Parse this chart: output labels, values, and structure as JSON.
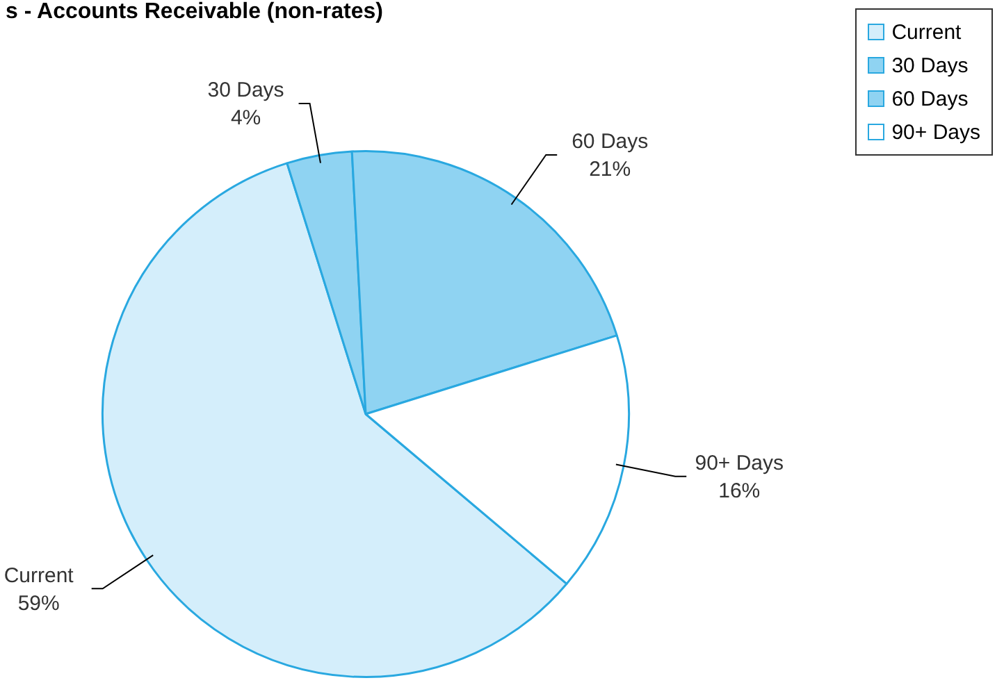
{
  "chart_data": {
    "type": "pie",
    "title": "s - Accounts Receivable (non-rates)",
    "categories": [
      "Current",
      "30 Days",
      "60 Days",
      "90+ Days"
    ],
    "values": [
      59,
      4,
      21,
      16
    ],
    "colors": [
      "#d4eefb",
      "#8fd3f2",
      "#8fd3f2",
      "#ffffff"
    ],
    "value_labels": [
      "59%",
      "4%",
      "21%",
      "16%"
    ],
    "legend": "top right"
  }
}
